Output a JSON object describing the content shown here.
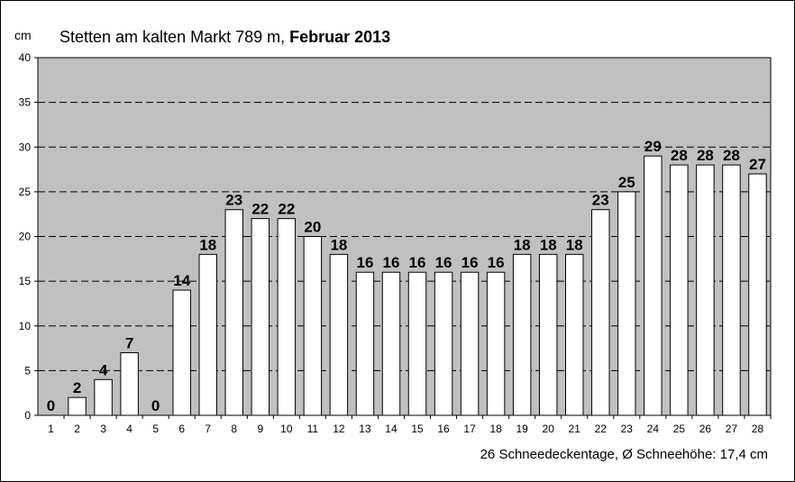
{
  "title_plain": "Stetten am kalten Markt 789 m, ",
  "title_bold": "Februar 2013",
  "footer": "26 Schneedeckentage,  Ø Schneehöhe:  17,4 cm",
  "colors": {
    "plot_bg": "#c0c0c0",
    "bar_fill": "#ffffff",
    "bar_stroke": "#000000",
    "grid": "#000000"
  },
  "chart_data": {
    "type": "bar",
    "ylabel": "cm",
    "ylim": [
      0,
      40
    ],
    "yticks": [
      0,
      5,
      10,
      15,
      20,
      25,
      30,
      35,
      40
    ],
    "grid": true,
    "categories": [
      "1",
      "2",
      "3",
      "4",
      "5",
      "6",
      "7",
      "8",
      "9",
      "10",
      "11",
      "12",
      "13",
      "14",
      "15",
      "16",
      "17",
      "18",
      "19",
      "20",
      "21",
      "22",
      "23",
      "24",
      "25",
      "26",
      "27",
      "28"
    ],
    "values": [
      0,
      2,
      4,
      7,
      0,
      14,
      18,
      23,
      22,
      22,
      20,
      18,
      16,
      16,
      16,
      16,
      16,
      16,
      18,
      18,
      18,
      23,
      25,
      29,
      28,
      28,
      28,
      27
    ]
  }
}
